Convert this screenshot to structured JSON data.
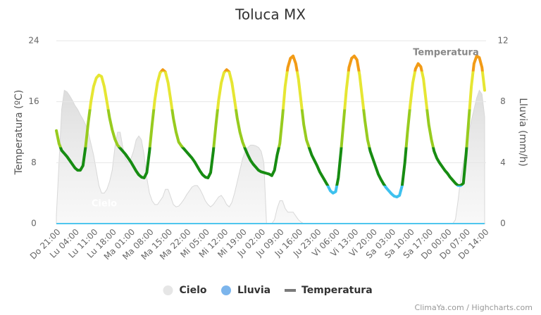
{
  "chart_data": {
    "type": "line",
    "title": "Toluca MX",
    "y_label": "Temperatura (ºC)",
    "y2_label": "Lluvia (mm/h)",
    "ylim": [
      0,
      24
    ],
    "yticks": [
      0,
      8,
      16,
      24
    ],
    "y2lim": [
      0,
      12
    ],
    "y2ticks": [
      0,
      4,
      8,
      12
    ],
    "annotations": [
      "Cielo",
      "Temperatura"
    ],
    "credits": "ClimaYa.com / Highcharts.com",
    "categories": [
      "Do 21:00",
      null,
      null,
      null,
      null,
      null,
      null,
      "Lu 04:00",
      null,
      null,
      null,
      null,
      null,
      null,
      "Lu 11:00",
      null,
      null,
      null,
      null,
      null,
      null,
      "Lu 18:00",
      null,
      null,
      null,
      null,
      null,
      null,
      "Ma 01:00",
      null,
      null,
      null,
      null,
      null,
      null,
      "Ma 08:00",
      null,
      null,
      null,
      null,
      null,
      null,
      "Ma 15:00",
      null,
      null,
      null,
      null,
      null,
      null,
      "Ma 22:00",
      null,
      null,
      null,
      null,
      null,
      null,
      "Mi 05:00",
      null,
      null,
      null,
      null,
      null,
      null,
      "Mi 12:00",
      null,
      null,
      null,
      null,
      null,
      null,
      "Mi 19:00",
      null,
      null,
      null,
      null,
      null,
      null,
      "Ju 02:00",
      null,
      null,
      null,
      null,
      null,
      null,
      "Ju 09:00",
      null,
      null,
      null,
      null,
      null,
      null,
      "Ju 16:00",
      null,
      null,
      null,
      null,
      null,
      null,
      "Ju 23:00",
      null,
      null,
      null,
      null,
      null,
      null,
      "Vi 06:00",
      null,
      null,
      null,
      null,
      null,
      null,
      "Vi 13:00",
      null,
      null,
      null,
      null,
      null,
      null,
      "Vi 20:00",
      null,
      null,
      null,
      null,
      null,
      null,
      "Sa 03:00",
      null,
      null,
      null,
      null,
      null,
      null,
      "Sa 10:00",
      null,
      null,
      null,
      null,
      null,
      null,
      "Sa 17:00",
      null,
      null,
      null,
      null,
      null,
      null,
      "Do 00:00",
      null,
      null,
      null,
      null,
      null,
      null,
      "Do 07:00",
      null,
      null,
      null,
      null,
      null,
      null,
      "Do 14:00"
    ],
    "series": [
      {
        "name": "Cielo",
        "kind": "area",
        "color": "#e2e2e2",
        "legend_color": "#e6e6e6",
        "values": [
          1,
          8,
          15,
          17.5,
          17.3,
          16.8,
          16.2,
          15.5,
          15,
          14.3,
          13.7,
          13,
          12,
          10.5,
          9,
          7,
          5,
          4,
          4,
          4.5,
          5.5,
          7,
          10,
          12,
          12,
          10,
          8.5,
          8,
          8.5,
          9.5,
          11,
          11.5,
          11,
          9,
          6,
          4,
          3,
          2.5,
          2.5,
          3,
          3.5,
          4.5,
          4.5,
          3.5,
          2.5,
          2.2,
          2.3,
          2.7,
          3.2,
          3.8,
          4.3,
          4.8,
          5,
          5,
          4.5,
          3.8,
          3,
          2.5,
          2.2,
          2.5,
          3,
          3.5,
          3.7,
          3.2,
          2.5,
          2.2,
          2.8,
          4,
          5.5,
          7,
          8.5,
          9.5,
          10,
          10.3,
          10.3,
          10.2,
          10,
          9.5,
          8,
          0,
          0,
          0,
          0.5,
          2,
          3,
          3,
          2,
          1.5,
          1.5,
          1.5,
          1,
          0.5,
          0.2,
          0,
          0,
          0,
          0,
          0,
          0,
          0,
          0,
          0,
          0,
          0,
          0,
          0,
          0,
          0,
          0,
          0,
          0,
          0,
          0,
          0,
          0,
          0,
          0,
          0,
          0,
          0,
          0,
          0,
          0,
          0,
          0,
          0,
          0,
          0,
          0,
          0,
          0,
          0,
          0,
          0,
          0,
          0,
          0,
          0,
          0,
          0,
          0,
          0,
          0,
          0,
          0,
          0,
          0,
          0,
          0,
          0,
          0.5,
          3,
          6,
          8,
          10,
          12,
          13.5,
          15,
          16.5,
          17.5,
          17,
          14
        ]
      },
      {
        "name": "Lluvia",
        "kind": "line",
        "axis": "y2",
        "color": "#4fc6ee",
        "legend_color": "#7cb5ec",
        "values": [
          0,
          0,
          0,
          0,
          0,
          0,
          0,
          0,
          0,
          0,
          0,
          0,
          0,
          0,
          0,
          0,
          0,
          0,
          0,
          0,
          0,
          0,
          0,
          0,
          0,
          0,
          0,
          0,
          0,
          0,
          0,
          0,
          0,
          0,
          0,
          0,
          0,
          0,
          0,
          0,
          0,
          0,
          0,
          0,
          0,
          0,
          0,
          0,
          0,
          0,
          0,
          0,
          0,
          0,
          0,
          0,
          0,
          0,
          0,
          0,
          0,
          0,
          0,
          0,
          0,
          0,
          0,
          0,
          0,
          0,
          0,
          0,
          0,
          0,
          0,
          0,
          0,
          0,
          0,
          0,
          0,
          0,
          0,
          0,
          0,
          0,
          0,
          0,
          0,
          0,
          0,
          0,
          0,
          0,
          0,
          0,
          0,
          0,
          0,
          0,
          0,
          0,
          0,
          0,
          0,
          0,
          0,
          0,
          0,
          0,
          0,
          0,
          0,
          0,
          0,
          0,
          0,
          0,
          0,
          0,
          0,
          0,
          0,
          0,
          0,
          0,
          0,
          0,
          0,
          0,
          0,
          0,
          0,
          0,
          0,
          0,
          0,
          0,
          0,
          0,
          0,
          0,
          0,
          0,
          0,
          0,
          0,
          0,
          0,
          0,
          0,
          0,
          0,
          0,
          0,
          0,
          0,
          0,
          0,
          0,
          0,
          0
        ]
      },
      {
        "name": "Temperatura",
        "kind": "zoned-line",
        "color": "#7a7a7a",
        "zones": [
          {
            "value": 5,
            "color": "#3ec1ee"
          },
          {
            "value": 10,
            "color": "#178c12"
          },
          {
            "value": 15,
            "color": "#97cb1f"
          },
          {
            "value": 20,
            "color": "#e6e633"
          },
          {
            "color": "#f29b16"
          }
        ],
        "values": [
          12.2,
          10.5,
          9.6,
          9.2,
          8.8,
          8.3,
          7.8,
          7.3,
          7,
          7,
          7.6,
          10.1,
          13.3,
          16,
          18,
          19.1,
          19.5,
          19.3,
          18,
          16,
          13.9,
          12.3,
          11.1,
          10.3,
          9.9,
          9.5,
          9.1,
          8.6,
          8.1,
          7.5,
          6.9,
          6.4,
          6.1,
          6,
          6.7,
          9.5,
          13,
          16.2,
          18.5,
          19.8,
          20.2,
          19.9,
          18.5,
          16.2,
          13.8,
          12,
          10.7,
          10.2,
          9.8,
          9.4,
          9,
          8.6,
          8.1,
          7.5,
          6.9,
          6.4,
          6.1,
          6,
          6.7,
          9.5,
          13,
          16.2,
          18.5,
          19.8,
          20.2,
          19.9,
          18.5,
          16.2,
          13.8,
          12,
          10.7,
          9.8,
          9,
          8.3,
          7.8,
          7.4,
          7,
          6.8,
          6.7,
          6.6,
          6.5,
          6.3,
          7,
          9,
          10.5,
          14,
          18,
          20.5,
          21.7,
          22,
          21,
          19,
          16,
          13,
          11,
          10,
          9,
          8.3,
          7.6,
          6.8,
          6.2,
          5.6,
          5,
          4.3,
          4,
          4.2,
          6,
          9.5,
          13.5,
          17.5,
          20.5,
          21.7,
          22,
          21.5,
          19.5,
          16.5,
          13.5,
          11,
          9.5,
          8.5,
          7.5,
          6.5,
          5.8,
          5.2,
          4.7,
          4.3,
          3.9,
          3.6,
          3.5,
          3.7,
          5,
          8,
          12,
          15.5,
          18.5,
          20.3,
          21,
          20.6,
          19,
          16,
          13,
          11,
          9.5,
          8.6,
          8,
          7.5,
          7,
          6.6,
          6.1,
          5.7,
          5.3,
          5,
          5,
          5.3,
          9,
          13.5,
          18,
          21,
          22,
          21.8,
          20.5,
          17.5
        ]
      }
    ]
  }
}
